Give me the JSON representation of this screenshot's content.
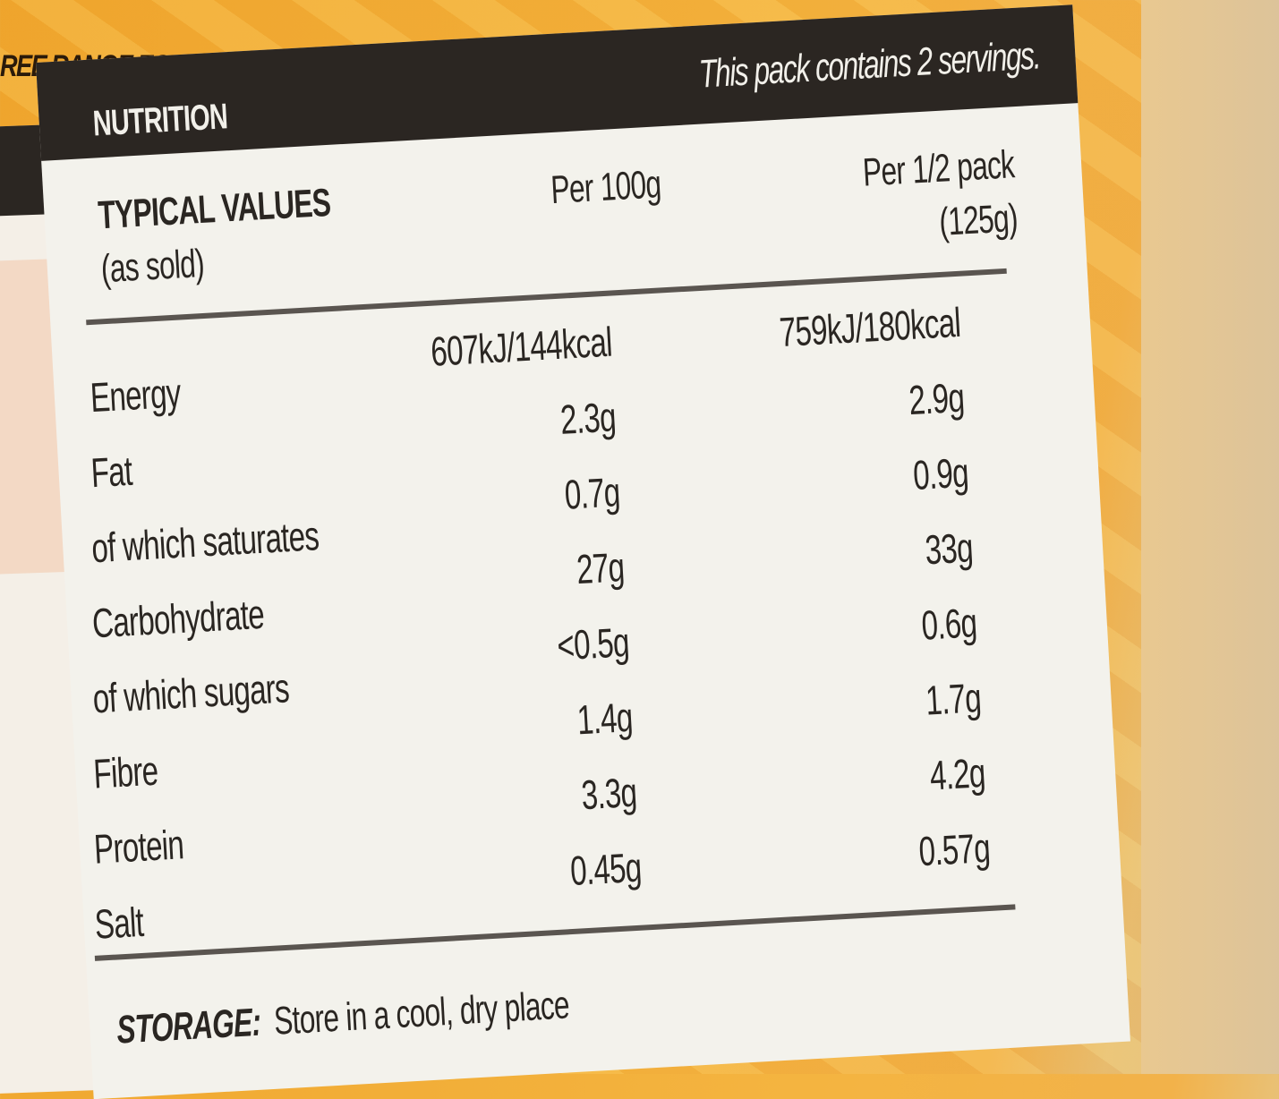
{
  "brand_text": "REE RANGE EGG",
  "nutrition": {
    "title": "NUTRITION",
    "servings": "This pack contains 2 servings.",
    "typical_values": "TYPICAL VALUES",
    "as_sold": "(as sold)",
    "col1": "Per 100g",
    "col2_line1": "Per 1/2 pack",
    "col2_line2": "(125g)",
    "rows": [
      {
        "label": "Energy",
        "per100": "607kJ/144kcal",
        "perhalf": "759kJ/180kcal"
      },
      {
        "label": "Fat",
        "per100": "2.3g",
        "perhalf": "2.9g"
      },
      {
        "label": "of which saturates",
        "per100": "0.7g",
        "perhalf": "0.9g"
      },
      {
        "label": "Carbohydrate",
        "per100": "27g",
        "perhalf": "33g"
      },
      {
        "label": "of which sugars",
        "per100": "<0.5g",
        "perhalf": "0.6g"
      },
      {
        "label": "Fibre",
        "per100": "1.4g",
        "perhalf": "1.7g"
      },
      {
        "label": "Protein",
        "per100": "3.3g",
        "perhalf": "4.2g"
      },
      {
        "label": "Salt",
        "per100": "0.45g",
        "perhalf": "0.57g"
      }
    ]
  },
  "storage": {
    "label": "STORAGE:",
    "text": "Store in a cool, dry place"
  },
  "colors": {
    "orange": "#f2ad38",
    "header": "#2b2622",
    "card": "#f3f2ec"
  }
}
